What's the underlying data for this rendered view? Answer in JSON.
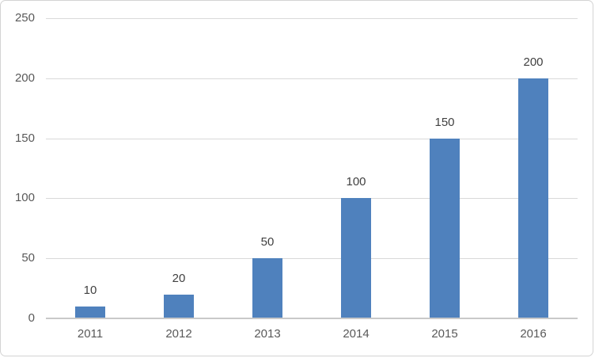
{
  "chart_data": {
    "type": "bar",
    "title": "",
    "categories": [
      "2011",
      "2012",
      "2013",
      "2014",
      "2015",
      "2016"
    ],
    "values": [
      10,
      20,
      50,
      100,
      150,
      200
    ],
    "data_labels": [
      10,
      20,
      50,
      100,
      150,
      200
    ],
    "data_label_position": "outside-end",
    "xlabel": "",
    "ylabel": "",
    "ylim": [
      0,
      250
    ],
    "yticks": [
      0,
      50,
      100,
      150,
      200,
      250
    ],
    "grid": "horizontal",
    "legend": "none",
    "colors": {
      "bar": "#4F81BD",
      "gridline": "#D9D9D9",
      "axis_line": "#C9C9C9",
      "tick_label": "#595959",
      "data_label": "#404040",
      "chart_border": "#D3D3D3",
      "background": "#FFFFFF"
    }
  }
}
